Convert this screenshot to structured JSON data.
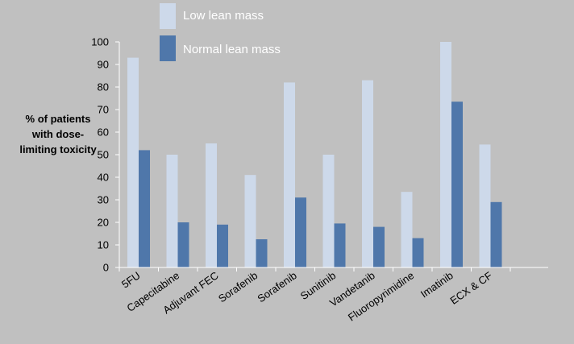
{
  "chart_data": {
    "type": "bar",
    "ylabel_lines": [
      "% of patients",
      "with dose-",
      "limiting toxicity"
    ],
    "ylim": [
      0,
      100
    ],
    "yticks": [
      0,
      10,
      20,
      30,
      40,
      50,
      60,
      70,
      80,
      90,
      100
    ],
    "grid": false,
    "legend_position": "top-center",
    "categories": [
      "5FU",
      "Capecitabine",
      "Adjuvant FEC",
      "Sorafenib",
      "Sorafenib",
      "Sunitinib",
      "Vandetanib",
      "Fluoropyrimidine",
      "Imatinib",
      "ECX & CF"
    ],
    "series": [
      {
        "name": "Low lean mass",
        "color": "#cdd9ea",
        "values": [
          93,
          50,
          55,
          41,
          82,
          50,
          83,
          33.5,
          100,
          54.5
        ]
      },
      {
        "name": "Normal lean mass",
        "color": "#4f77aa",
        "values": [
          52,
          20,
          19,
          12.5,
          31,
          19.5,
          18,
          13,
          73.5,
          29
        ]
      }
    ]
  }
}
